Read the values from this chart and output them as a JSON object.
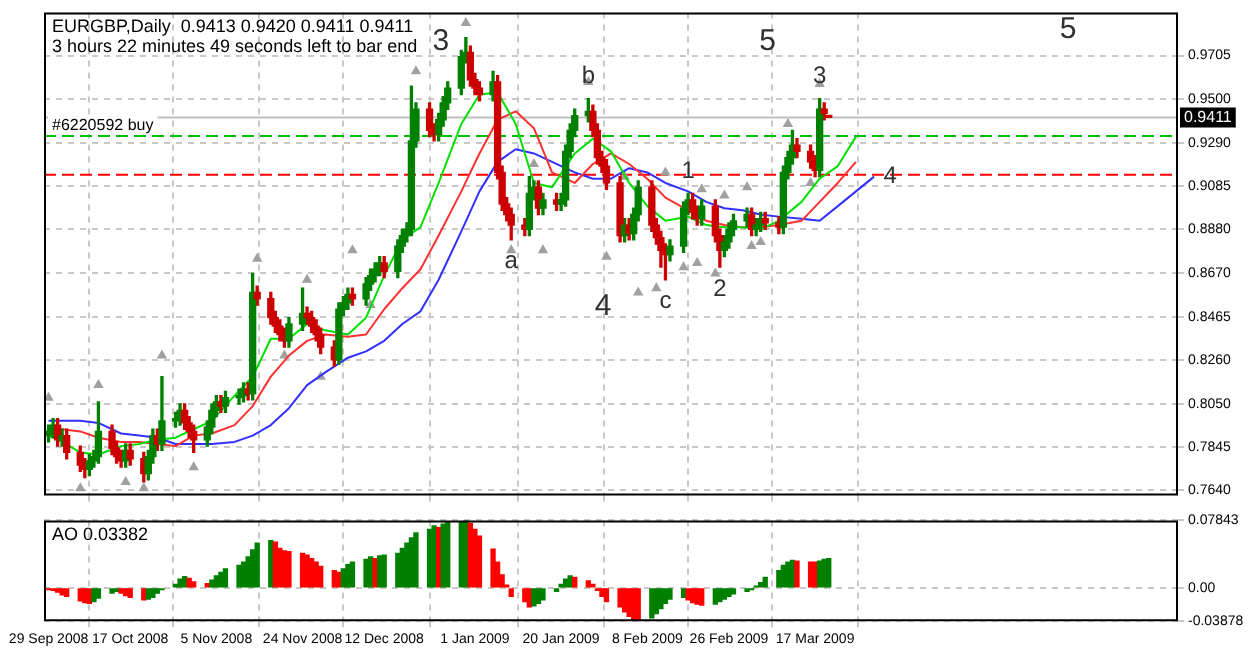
{
  "chart_data": [
    {
      "type": "candlestick",
      "title": "EURGBP,Daily  0.9413 0.9420 0.9411 0.9411",
      "subtitle": "3 hours 22 minutes 49 seconds left to bar end",
      "x": [
        "2008-09-29",
        "2008-09-30",
        "2008-10-01",
        "2008-10-02",
        "2008-10-03",
        "2008-10-06",
        "2008-10-07",
        "2008-10-08",
        "2008-10-09",
        "2008-10-10",
        "2008-10-13",
        "2008-10-14",
        "2008-10-15",
        "2008-10-16",
        "2008-10-17",
        "2008-10-20",
        "2008-10-21",
        "2008-10-22",
        "2008-10-23",
        "2008-10-24",
        "2008-10-27",
        "2008-10-28",
        "2008-10-29",
        "2008-10-30",
        "2008-10-31",
        "2008-11-03",
        "2008-11-04",
        "2008-11-05",
        "2008-11-06",
        "2008-11-07",
        "2008-11-10",
        "2008-11-11",
        "2008-11-12",
        "2008-11-13",
        "2008-11-14",
        "2008-11-17",
        "2008-11-18",
        "2008-11-19",
        "2008-11-20",
        "2008-11-21",
        "2008-11-24",
        "2008-11-25",
        "2008-11-26",
        "2008-11-27",
        "2008-11-28",
        "2008-12-01",
        "2008-12-02",
        "2008-12-03",
        "2008-12-04",
        "2008-12-05",
        "2008-12-08",
        "2008-12-09",
        "2008-12-10",
        "2008-12-11",
        "2008-12-12",
        "2008-12-15",
        "2008-12-16",
        "2008-12-17",
        "2008-12-18",
        "2008-12-19",
        "2008-12-22",
        "2008-12-23",
        "2008-12-24",
        "2008-12-25",
        "2008-12-26",
        "2008-12-29",
        "2008-12-30",
        "2008-12-31",
        "2009-01-01",
        "2009-01-02",
        "2009-01-05",
        "2009-01-06",
        "2009-01-07",
        "2009-01-08",
        "2009-01-09",
        "2009-01-12",
        "2009-01-13",
        "2009-01-14",
        "2009-01-15",
        "2009-01-16",
        "2009-01-19",
        "2009-01-20",
        "2009-01-21",
        "2009-01-22",
        "2009-01-23",
        "2009-01-26",
        "2009-01-27",
        "2009-01-28",
        "2009-01-29",
        "2009-01-30",
        "2009-02-02",
        "2009-02-03",
        "2009-02-04",
        "2009-02-05",
        "2009-02-06",
        "2009-02-09",
        "2009-02-10",
        "2009-02-11",
        "2009-02-12",
        "2009-02-13",
        "2009-02-16",
        "2009-02-17",
        "2009-02-18",
        "2009-02-19",
        "2009-02-20",
        "2009-02-23",
        "2009-02-24",
        "2009-02-25",
        "2009-02-26",
        "2009-02-27",
        "2009-03-02",
        "2009-03-03",
        "2009-03-04",
        "2009-03-05",
        "2009-03-06",
        "2009-03-09",
        "2009-03-10",
        "2009-03-11",
        "2009-03-12",
        "2009-03-13",
        "2009-03-16",
        "2009-03-17",
        "2009-03-18",
        "2009-03-19",
        "2009-03-20"
      ],
      "ohlc": [
        [
          0.79,
          0.795,
          0.787,
          0.792
        ],
        [
          0.792,
          0.798,
          0.789,
          0.795
        ],
        [
          0.795,
          0.798,
          0.785,
          0.788
        ],
        [
          0.788,
          0.793,
          0.785,
          0.79
        ],
        [
          0.79,
          0.793,
          0.779,
          0.782
        ],
        [
          0.782,
          0.785,
          0.773,
          0.776
        ],
        [
          0.776,
          0.779,
          0.77,
          0.774
        ],
        [
          0.774,
          0.781,
          0.771,
          0.778
        ],
        [
          0.778,
          0.783,
          0.775,
          0.78
        ],
        [
          0.78,
          0.806,
          0.777,
          0.792
        ],
        [
          0.792,
          0.795,
          0.781,
          0.784
        ],
        [
          0.784,
          0.787,
          0.777,
          0.78
        ],
        [
          0.78,
          0.783,
          0.775,
          0.778
        ],
        [
          0.778,
          0.786,
          0.775,
          0.783
        ],
        [
          0.783,
          0.786,
          0.776,
          0.779
        ],
        [
          0.779,
          0.782,
          0.768,
          0.772
        ],
        [
          0.772,
          0.783,
          0.769,
          0.78
        ],
        [
          0.78,
          0.793,
          0.777,
          0.79
        ],
        [
          0.79,
          0.793,
          0.783,
          0.786
        ],
        [
          0.786,
          0.818,
          0.783,
          0.797
        ],
        [
          0.797,
          0.801,
          0.794,
          0.798
        ],
        [
          0.798,
          0.805,
          0.795,
          0.802
        ],
        [
          0.802,
          0.805,
          0.793,
          0.796
        ],
        [
          0.796,
          0.799,
          0.789,
          0.792
        ],
        [
          0.792,
          0.795,
          0.782,
          0.788
        ],
        [
          0.788,
          0.797,
          0.785,
          0.794
        ],
        [
          0.794,
          0.805,
          0.791,
          0.802
        ],
        [
          0.802,
          0.809,
          0.799,
          0.806
        ],
        [
          0.806,
          0.809,
          0.801,
          0.804
        ],
        [
          0.804,
          0.811,
          0.801,
          0.808
        ],
        [
          0.808,
          0.812,
          0.805,
          0.809
        ],
        [
          0.809,
          0.815,
          0.806,
          0.812
        ],
        [
          0.812,
          0.815,
          0.807,
          0.81
        ],
        [
          0.81,
          0.867,
          0.807,
          0.858
        ],
        [
          0.858,
          0.861,
          0.852,
          0.855
        ],
        [
          0.855,
          0.858,
          0.843,
          0.846
        ],
        [
          0.846,
          0.849,
          0.839,
          0.842
        ],
        [
          0.842,
          0.845,
          0.835,
          0.838
        ],
        [
          0.838,
          0.841,
          0.832,
          0.835
        ],
        [
          0.835,
          0.846,
          0.832,
          0.843
        ],
        [
          0.843,
          0.86,
          0.84,
          0.848
        ],
        [
          0.848,
          0.851,
          0.843,
          0.846
        ],
        [
          0.846,
          0.849,
          0.839,
          0.842
        ],
        [
          0.842,
          0.845,
          0.835,
          0.838
        ],
        [
          0.838,
          0.841,
          0.829,
          0.832
        ],
        [
          0.832,
          0.835,
          0.823,
          0.826
        ],
        [
          0.826,
          0.853,
          0.824,
          0.85
        ],
        [
          0.85,
          0.856,
          0.847,
          0.853
        ],
        [
          0.853,
          0.86,
          0.85,
          0.857
        ],
        [
          0.857,
          0.86,
          0.852,
          0.855
        ],
        [
          0.855,
          0.865,
          0.852,
          0.862
        ],
        [
          0.862,
          0.869,
          0.859,
          0.866
        ],
        [
          0.866,
          0.872,
          0.863,
          0.869
        ],
        [
          0.869,
          0.875,
          0.866,
          0.872
        ],
        [
          0.872,
          0.875,
          0.865,
          0.868
        ],
        [
          0.868,
          0.883,
          0.865,
          0.88
        ],
        [
          0.88,
          0.888,
          0.877,
          0.885
        ],
        [
          0.885,
          0.891,
          0.882,
          0.888
        ],
        [
          0.888,
          0.956,
          0.885,
          0.93
        ],
        [
          0.93,
          0.948,
          0.927,
          0.945
        ],
        [
          0.945,
          0.948,
          0.932,
          0.935
        ],
        [
          0.935,
          0.938,
          0.93,
          0.933
        ],
        [
          0.933,
          0.943,
          0.93,
          0.94
        ],
        [
          0.94,
          0.951,
          0.937,
          0.948
        ],
        [
          0.948,
          0.958,
          0.945,
          0.955
        ],
        [
          0.955,
          0.973,
          0.952,
          0.97
        ],
        [
          0.97,
          0.979,
          0.967,
          0.972
        ],
        [
          0.972,
          0.975,
          0.956,
          0.959
        ],
        [
          0.959,
          0.962,
          0.952,
          0.955
        ],
        [
          0.955,
          0.958,
          0.949,
          0.952
        ],
        [
          0.952,
          0.963,
          0.949,
          0.958
        ],
        [
          0.958,
          0.961,
          0.912,
          0.915
        ],
        [
          0.915,
          0.918,
          0.897,
          0.9
        ],
        [
          0.9,
          0.903,
          0.892,
          0.895
        ],
        [
          0.895,
          0.898,
          0.883,
          0.89
        ],
        [
          0.89,
          0.893,
          0.885,
          0.888
        ],
        [
          0.888,
          0.913,
          0.885,
          0.905
        ],
        [
          0.905,
          0.911,
          0.902,
          0.908
        ],
        [
          0.908,
          0.911,
          0.895,
          0.898
        ],
        [
          0.898,
          0.905,
          0.895,
          0.902
        ],
        [
          0.902,
          0.905,
          0.897,
          0.9
        ],
        [
          0.9,
          0.905,
          0.897,
          0.902
        ],
        [
          0.902,
          0.928,
          0.899,
          0.925
        ],
        [
          0.925,
          0.938,
          0.922,
          0.935
        ],
        [
          0.935,
          0.945,
          0.932,
          0.942
        ],
        [
          0.942,
          0.95,
          0.939,
          0.944
        ],
        [
          0.944,
          0.947,
          0.932,
          0.935
        ],
        [
          0.935,
          0.938,
          0.919,
          0.922
        ],
        [
          0.922,
          0.925,
          0.915,
          0.918
        ],
        [
          0.918,
          0.921,
          0.907,
          0.91
        ],
        [
          0.91,
          0.913,
          0.882,
          0.885
        ],
        [
          0.885,
          0.893,
          0.882,
          0.89
        ],
        [
          0.89,
          0.893,
          0.883,
          0.886
        ],
        [
          0.886,
          0.898,
          0.883,
          0.895
        ],
        [
          0.895,
          0.911,
          0.892,
          0.908
        ],
        [
          0.908,
          0.911,
          0.887,
          0.89
        ],
        [
          0.89,
          0.893,
          0.881,
          0.884
        ],
        [
          0.884,
          0.887,
          0.87,
          0.878
        ],
        [
          0.878,
          0.881,
          0.864,
          0.876
        ],
        [
          0.876,
          0.883,
          0.873,
          0.88
        ],
        [
          0.88,
          0.901,
          0.877,
          0.898
        ],
        [
          0.898,
          0.905,
          0.895,
          0.902
        ],
        [
          0.902,
          0.905,
          0.893,
          0.896
        ],
        [
          0.896,
          0.899,
          0.89,
          0.893
        ],
        [
          0.893,
          0.902,
          0.89,
          0.899
        ],
        [
          0.899,
          0.902,
          0.882,
          0.885
        ],
        [
          0.885,
          0.888,
          0.87,
          0.878
        ],
        [
          0.878,
          0.885,
          0.875,
          0.882
        ],
        [
          0.882,
          0.891,
          0.879,
          0.888
        ],
        [
          0.888,
          0.895,
          0.885,
          0.892
        ],
        [
          0.892,
          0.898,
          0.889,
          0.895
        ],
        [
          0.895,
          0.898,
          0.885,
          0.888
        ],
        [
          0.888,
          0.893,
          0.885,
          0.89
        ],
        [
          0.89,
          0.896,
          0.887,
          0.893
        ],
        [
          0.893,
          0.896,
          0.888,
          0.891
        ],
        [
          0.891,
          0.894,
          0.886,
          0.889
        ],
        [
          0.889,
          0.918,
          0.886,
          0.915
        ],
        [
          0.915,
          0.925,
          0.912,
          0.922
        ],
        [
          0.922,
          0.935,
          0.919,
          0.928
        ],
        [
          0.928,
          0.931,
          0.922,
          0.925
        ],
        [
          0.925,
          0.928,
          0.917,
          0.92
        ],
        [
          0.92,
          0.923,
          0.913,
          0.916
        ],
        [
          0.916,
          0.95,
          0.913,
          0.945
        ],
        [
          0.945,
          0.948,
          0.94,
          0.943
        ],
        [
          0.9413,
          0.942,
          0.9411,
          0.9411
        ]
      ],
      "colors": [
        "#008000",
        "#008000",
        "#cc0000",
        "#008000",
        "#cc0000",
        "#cc0000",
        "#cc0000",
        "#008000",
        "#008000",
        "#008000",
        "#cc0000",
        "#cc0000",
        "#cc0000",
        "#008000",
        "#cc0000",
        "#cc0000",
        "#008000",
        "#008000",
        "#cc0000",
        "#008000",
        "#008000",
        "#008000",
        "#cc0000",
        "#cc0000",
        "#cc0000",
        "#008000",
        "#008000",
        "#008000",
        "#cc0000",
        "#008000",
        "#008000",
        "#008000",
        "#cc0000",
        "#008000",
        "#cc0000",
        "#cc0000",
        "#cc0000",
        "#cc0000",
        "#cc0000",
        "#008000",
        "#008000",
        "#cc0000",
        "#cc0000",
        "#cc0000",
        "#cc0000",
        "#cc0000",
        "#008000",
        "#008000",
        "#008000",
        "#cc0000",
        "#008000",
        "#008000",
        "#008000",
        "#008000",
        "#cc0000",
        "#008000",
        "#008000",
        "#008000",
        "#008000",
        "#008000",
        "#cc0000",
        "#cc0000",
        "#008000",
        "#008000",
        "#008000",
        "#008000",
        "#008000",
        "#cc0000",
        "#cc0000",
        "#cc0000",
        "#008000",
        "#cc0000",
        "#cc0000",
        "#cc0000",
        "#cc0000",
        "#cc0000",
        "#008000",
        "#008000",
        "#cc0000",
        "#008000",
        "#cc0000",
        "#008000",
        "#008000",
        "#008000",
        "#008000",
        "#008000",
        "#cc0000",
        "#cc0000",
        "#cc0000",
        "#cc0000",
        "#cc0000",
        "#008000",
        "#cc0000",
        "#008000",
        "#008000",
        "#cc0000",
        "#cc0000",
        "#cc0000",
        "#cc0000",
        "#008000",
        "#008000",
        "#008000",
        "#cc0000",
        "#cc0000",
        "#008000",
        "#cc0000",
        "#cc0000",
        "#008000",
        "#008000",
        "#008000",
        "#008000",
        "#cc0000",
        "#008000",
        "#008000",
        "#cc0000",
        "#cc0000",
        "#008000",
        "#008000",
        "#008000",
        "#cc0000",
        "#cc0000",
        "#cc0000",
        "#008000",
        "#cc0000",
        "#cc0000"
      ],
      "series": [
        {
          "type": "line",
          "color": "#00e000",
          "x": [
            "2008-09-29",
            "2008-10-02",
            "2008-10-06",
            "2008-10-10",
            "2008-10-15",
            "2008-10-19",
            "2008-10-23",
            "2008-10-27",
            "2008-10-31",
            "2008-11-04",
            "2008-11-09",
            "2008-11-13",
            "2008-11-17",
            "2008-11-21",
            "2008-11-25",
            "2008-11-29",
            "2008-12-04",
            "2008-12-08",
            "2008-12-12",
            "2008-12-16",
            "2008-12-20",
            "2008-12-24",
            "2008-12-29",
            "2009-01-02",
            "2009-01-06",
            "2009-01-10",
            "2009-01-14",
            "2009-01-18",
            "2009-01-23",
            "2009-01-27",
            "2009-01-31",
            "2009-02-04",
            "2009-02-08",
            "2009-02-12",
            "2009-02-17",
            "2009-02-21",
            "2009-02-25",
            "2009-03-01",
            "2009-03-05",
            "2009-03-09",
            "2009-03-14",
            "2009-03-18",
            "2009-03-22",
            "2009-03-26"
          ],
          "values": [
            0.79,
            0.787,
            0.782,
            0.781,
            0.785,
            0.786,
            0.788,
            0.789,
            0.793,
            0.797,
            0.809,
            0.818,
            0.836,
            0.836,
            0.843,
            0.84,
            0.838,
            0.846,
            0.866,
            0.883,
            0.889,
            0.91,
            0.938,
            0.952,
            0.953,
            0.938,
            0.91,
            0.908,
            0.924,
            0.931,
            0.925,
            0.91,
            0.899,
            0.892,
            0.894,
            0.89,
            0.889,
            0.889,
            0.888,
            0.892,
            0.901,
            0.912,
            0.918,
            0.932
          ]
        },
        {
          "type": "line",
          "color": "#ff3030",
          "x": [
            "2008-09-29",
            "2008-10-02",
            "2008-10-06",
            "2008-10-10",
            "2008-10-15",
            "2008-10-19",
            "2008-10-23",
            "2008-10-27",
            "2008-10-31",
            "2008-11-04",
            "2008-11-09",
            "2008-11-13",
            "2008-11-17",
            "2008-11-21",
            "2008-11-25",
            "2008-11-29",
            "2008-12-04",
            "2008-12-08",
            "2008-12-12",
            "2008-12-16",
            "2008-12-20",
            "2008-12-24",
            "2008-12-29",
            "2009-01-02",
            "2009-01-06",
            "2009-01-10",
            "2009-01-14",
            "2009-01-18",
            "2009-01-23",
            "2009-01-27",
            "2009-01-31",
            "2009-02-04",
            "2009-02-08",
            "2009-02-12",
            "2009-02-17",
            "2009-02-21",
            "2009-02-25",
            "2009-03-01",
            "2009-03-05",
            "2009-03-09",
            "2009-03-14",
            "2009-03-18",
            "2009-03-22",
            "2009-03-26"
          ],
          "values": [
            0.793,
            0.793,
            0.792,
            0.789,
            0.787,
            0.787,
            0.786,
            0.785,
            0.79,
            0.791,
            0.795,
            0.804,
            0.818,
            0.828,
            0.835,
            0.838,
            0.837,
            0.838,
            0.85,
            0.86,
            0.869,
            0.885,
            0.906,
            0.924,
            0.94,
            0.944,
            0.936,
            0.915,
            0.91,
            0.919,
            0.924,
            0.919,
            0.912,
            0.903,
            0.897,
            0.892,
            0.89,
            0.889,
            0.889,
            0.89,
            0.892,
            0.901,
            0.91,
            0.92
          ]
        },
        {
          "type": "line",
          "color": "#3030ff",
          "x": [
            "2008-09-29",
            "2008-10-02",
            "2008-10-06",
            "2008-10-10",
            "2008-10-15",
            "2008-10-19",
            "2008-10-23",
            "2008-10-27",
            "2008-10-31",
            "2008-11-04",
            "2008-11-09",
            "2008-11-13",
            "2008-11-17",
            "2008-11-21",
            "2008-11-25",
            "2008-11-29",
            "2008-12-04",
            "2008-12-08",
            "2008-12-12",
            "2008-12-16",
            "2008-12-20",
            "2008-12-24",
            "2008-12-29",
            "2009-01-02",
            "2009-01-06",
            "2009-01-10",
            "2009-01-14",
            "2009-01-18",
            "2009-01-23",
            "2009-01-27",
            "2009-01-31",
            "2009-02-04",
            "2009-02-08",
            "2009-02-12",
            "2009-02-17",
            "2009-02-21",
            "2009-02-25",
            "2009-03-01",
            "2009-03-05",
            "2009-03-09",
            "2009-03-14",
            "2009-03-18",
            "2009-03-22",
            "2009-03-26",
            "2009-03-30"
          ],
          "values": [
            0.797,
            0.797,
            0.797,
            0.796,
            0.791,
            0.79,
            0.789,
            0.786,
            0.786,
            0.786,
            0.787,
            0.79,
            0.795,
            0.803,
            0.814,
            0.82,
            0.827,
            0.83,
            0.835,
            0.843,
            0.849,
            0.864,
            0.887,
            0.906,
            0.92,
            0.926,
            0.924,
            0.92,
            0.915,
            0.912,
            0.912,
            0.917,
            0.915,
            0.91,
            0.906,
            0.901,
            0.898,
            0.897,
            0.895,
            0.894,
            0.893,
            0.892,
            0.899,
            0.906,
            0.913
          ]
        },
        {
          "type": "scatter",
          "color": "#a0a0a0",
          "marker": "triangle",
          "x": [
            "2008-09-29",
            "2008-10-10",
            "2008-10-24",
            "2008-11-14",
            "2008-11-25",
            "2008-12-05",
            "2008-12-19",
            "2008-12-30",
            "2009-01-14",
            "2009-01-26",
            "2009-02-03",
            "2009-02-12",
            "2009-02-20",
            "2009-02-25",
            "2009-03-02",
            "2009-03-11",
            "2009-03-18"
          ],
          "values": [
            0.808,
            0.814,
            0.828,
            0.874,
            0.864,
            0.878,
            0.963,
            0.986,
            0.919,
            0.958,
            0.913,
            0.915,
            0.907,
            0.904,
            0.908,
            0.938,
            0.957
          ]
        },
        {
          "type": "scatter",
          "color": "#a0a0a0",
          "marker": "triangle",
          "x": [
            "2008-10-06",
            "2008-10-16",
            "2008-10-20",
            "2008-10-31",
            "2008-11-20",
            "2008-11-28",
            "2008-12-09",
            "2009-01-09",
            "2009-01-16",
            "2009-01-30",
            "2009-02-06",
            "2009-02-10",
            "2009-02-16",
            "2009-02-19",
            "2009-02-23",
            "2009-03-03",
            "2009-03-05",
            "2009-03-16"
          ],
          "values": [
            0.765,
            0.768,
            0.765,
            0.775,
            0.828,
            0.818,
            0.852,
            0.878,
            0.878,
            0.875,
            0.858,
            0.86,
            0.87,
            0.872,
            0.867,
            0.88,
            0.882,
            0.91
          ]
        }
      ],
      "ref_lines": [
        {
          "axis": "y",
          "value": 0.9323,
          "label": "#6220592 buy",
          "color": "#00c000",
          "line_style": "dashed"
        },
        {
          "axis": "y",
          "value": 0.9139,
          "color": "#ff0000",
          "line_style": "dashed"
        },
        {
          "axis": "y",
          "value": 0.9411,
          "color": "#c0c0c0",
          "line_style": "solid"
        }
      ],
      "annotations": [
        "3",
        "5",
        "5",
        "4",
        {
          "text": "a",
          "x": "2009-01-09",
          "y": 0.883
        },
        {
          "text": "b",
          "x": "2009-01-26",
          "y": 0.95
        },
        {
          "text": "c",
          "x": "2009-02-12",
          "y": 0.864
        },
        {
          "text": "1",
          "x": "2009-02-17",
          "y": 0.905
        },
        {
          "text": "2",
          "x": "2009-02-24",
          "y": 0.87
        },
        {
          "text": "3",
          "x": "2009-03-18",
          "y": 0.95
        },
        {
          "text": "4",
          "x": "2009-03-30",
          "y": 0.913
        },
        {
          "text": "0.9411",
          "y": 0.9411
        }
      ],
      "xlim": [
        "2008-09-28",
        "2009-06-05"
      ],
      "xticks": [
        {
          "value": "2008-09-29",
          "label": null
        },
        {
          "value": "2008-10-17",
          "label": null
        },
        {
          "value": "2008-11-05",
          "label": null
        },
        {
          "value": "2008-11-24",
          "label": null
        },
        {
          "value": "2008-12-12",
          "label": null
        },
        {
          "value": "2009-01-01",
          "label": null
        },
        {
          "value": "2009-01-20",
          "label": null
        },
        {
          "value": "2009-02-08",
          "label": null
        },
        {
          "value": "2009-02-26",
          "label": null
        },
        {
          "value": "2009-03-17",
          "label": null
        }
      ],
      "ylim": [
        0.7615,
        0.991
      ],
      "yticks": [
        0.9705,
        {
          "value": 0.95,
          "label": "0.9500"
        },
        {
          "value": 0.929,
          "label": "0.9290"
        },
        0.9085,
        {
          "value": 0.888,
          "label": "0.8880"
        },
        {
          "value": 0.867,
          "label": "0.8670"
        },
        0.8465,
        {
          "value": 0.826,
          "label": "0.8260"
        },
        {
          "value": 0.805,
          "label": "0.8050"
        },
        0.7845,
        {
          "value": 0.764,
          "label": "0.7640"
        }
      ],
      "grid": true,
      "tick_labels": "y"
    },
    {
      "type": "bar",
      "title": "AO 0.03382",
      "x": [
        "2008-09-29",
        "2008-09-30",
        "2008-10-01",
        "2008-10-02",
        "2008-10-03",
        "2008-10-06",
        "2008-10-07",
        "2008-10-08",
        "2008-10-09",
        "2008-10-10",
        "2008-10-13",
        "2008-10-14",
        "2008-10-15",
        "2008-10-16",
        "2008-10-17",
        "2008-10-20",
        "2008-10-21",
        "2008-10-22",
        "2008-10-23",
        "2008-10-24",
        "2008-10-27",
        "2008-10-28",
        "2008-10-29",
        "2008-10-30",
        "2008-10-31",
        "2008-11-03",
        "2008-11-04",
        "2008-11-05",
        "2008-11-06",
        "2008-11-07",
        "2008-11-10",
        "2008-11-11",
        "2008-11-12",
        "2008-11-13",
        "2008-11-14",
        "2008-11-17",
        "2008-11-18",
        "2008-11-19",
        "2008-11-20",
        "2008-11-21",
        "2008-11-24",
        "2008-11-25",
        "2008-11-26",
        "2008-11-27",
        "2008-11-28",
        "2008-12-01",
        "2008-12-02",
        "2008-12-03",
        "2008-12-04",
        "2008-12-05",
        "2008-12-08",
        "2008-12-09",
        "2008-12-10",
        "2008-12-11",
        "2008-12-12",
        "2008-12-15",
        "2008-12-16",
        "2008-12-17",
        "2008-12-18",
        "2008-12-19",
        "2008-12-22",
        "2008-12-23",
        "2008-12-24",
        "2008-12-25",
        "2008-12-26",
        "2008-12-29",
        "2008-12-30",
        "2008-12-31",
        "2009-01-01",
        "2009-01-02",
        "2009-01-05",
        "2009-01-06",
        "2009-01-07",
        "2009-01-08",
        "2009-01-09",
        "2009-01-12",
        "2009-01-13",
        "2009-01-14",
        "2009-01-15",
        "2009-01-16",
        "2009-01-19",
        "2009-01-20",
        "2009-01-21",
        "2009-01-22",
        "2009-01-23",
        "2009-01-26",
        "2009-01-27",
        "2009-01-28",
        "2009-01-29",
        "2009-01-30",
        "2009-02-02",
        "2009-02-03",
        "2009-02-04",
        "2009-02-05",
        "2009-02-06",
        "2009-02-09",
        "2009-02-10",
        "2009-02-11",
        "2009-02-12",
        "2009-02-13",
        "2009-02-16",
        "2009-02-17",
        "2009-02-18",
        "2009-02-19",
        "2009-02-20",
        "2009-02-23",
        "2009-02-24",
        "2009-02-25",
        "2009-02-26",
        "2009-02-27",
        "2009-03-02",
        "2009-03-03",
        "2009-03-04",
        "2009-03-05",
        "2009-03-06",
        "2009-03-09",
        "2009-03-10",
        "2009-03-11",
        "2009-03-12",
        "2009-03-13",
        "2009-03-16",
        "2009-03-17",
        "2009-03-18",
        "2009-03-19",
        "2009-03-20"
      ],
      "values": [
        -0.002,
        -0.003,
        -0.005,
        -0.008,
        -0.01,
        -0.015,
        -0.017,
        -0.018,
        -0.016,
        -0.012,
        -0.006,
        -0.004,
        -0.006,
        -0.009,
        -0.011,
        -0.014,
        -0.013,
        -0.011,
        -0.006,
        -0.002,
        0.004,
        0.01,
        0.013,
        0.011,
        0.007,
        0.005,
        0.009,
        0.014,
        0.018,
        0.022,
        0.026,
        0.03,
        0.036,
        0.044,
        0.052,
        0.055,
        0.053,
        0.046,
        0.043,
        0.042,
        0.04,
        0.038,
        0.034,
        0.03,
        0.025,
        0.02,
        0.018,
        0.022,
        0.027,
        0.03,
        0.033,
        0.036,
        0.034,
        0.037,
        0.038,
        0.04,
        0.046,
        0.052,
        0.058,
        0.064,
        0.068,
        0.072,
        0.07,
        0.074,
        0.076,
        0.077,
        0.078,
        0.075,
        0.068,
        0.06,
        0.045,
        0.03,
        0.015,
        0.003,
        -0.01,
        -0.016,
        -0.022,
        -0.021,
        -0.018,
        -0.014,
        -0.004,
        0.004,
        0.01,
        0.014,
        0.012,
        0.008,
        0.004,
        -0.003,
        -0.01,
        -0.016,
        -0.022,
        -0.028,
        -0.033,
        -0.037,
        -0.038,
        -0.035,
        -0.03,
        -0.024,
        -0.018,
        -0.013,
        -0.011,
        -0.014,
        -0.017,
        -0.019,
        -0.02,
        -0.019,
        -0.016,
        -0.013,
        -0.01,
        -0.007,
        -0.004,
        -0.002,
        0.002,
        0.006,
        0.012,
        0.02,
        0.026,
        0.03,
        0.032,
        0.031,
        0.03,
        0.03,
        0.031,
        0.033,
        0.034
      ],
      "colors": [
        "#ff0000",
        "#ff0000",
        "#ff0000",
        "#ff0000",
        "#ff0000",
        "#ff0000",
        "#ff0000",
        "#ff0000",
        "#008000",
        "#008000",
        "#008000",
        "#008000",
        "#ff0000",
        "#ff0000",
        "#ff0000",
        "#ff0000",
        "#008000",
        "#008000",
        "#008000",
        "#008000",
        "#008000",
        "#008000",
        "#008000",
        "#ff0000",
        "#ff0000",
        "#ff0000",
        "#008000",
        "#008000",
        "#008000",
        "#008000",
        "#008000",
        "#008000",
        "#008000",
        "#008000",
        "#008000",
        "#008000",
        "#ff0000",
        "#ff0000",
        "#ff0000",
        "#ff0000",
        "#ff0000",
        "#ff0000",
        "#ff0000",
        "#ff0000",
        "#ff0000",
        "#ff0000",
        "#ff0000",
        "#008000",
        "#008000",
        "#008000",
        "#008000",
        "#008000",
        "#ff0000",
        "#008000",
        "#008000",
        "#008000",
        "#008000",
        "#008000",
        "#008000",
        "#008000",
        "#008000",
        "#008000",
        "#ff0000",
        "#008000",
        "#008000",
        "#008000",
        "#008000",
        "#ff0000",
        "#ff0000",
        "#ff0000",
        "#ff0000",
        "#ff0000",
        "#ff0000",
        "#ff0000",
        "#ff0000",
        "#ff0000",
        "#ff0000",
        "#008000",
        "#008000",
        "#008000",
        "#008000",
        "#008000",
        "#008000",
        "#008000",
        "#ff0000",
        "#ff0000",
        "#ff0000",
        "#ff0000",
        "#ff0000",
        "#ff0000",
        "#ff0000",
        "#ff0000",
        "#ff0000",
        "#ff0000",
        "#ff0000",
        "#008000",
        "#008000",
        "#008000",
        "#008000",
        "#008000",
        "#008000",
        "#ff0000",
        "#ff0000",
        "#ff0000",
        "#ff0000",
        "#008000",
        "#008000",
        "#008000",
        "#008000",
        "#008000",
        "#008000",
        "#008000",
        "#008000",
        "#008000",
        "#008000",
        "#008000",
        "#008000",
        "#008000",
        "#008000",
        "#ff0000",
        "#ff0000",
        "#ff0000",
        "#008000",
        "#008000",
        "#008000"
      ],
      "xlim": [
        "2008-09-28",
        "2009-06-05"
      ],
      "xticks": [
        {
          "value": "2008-09-29",
          "label": "29 Sep 2008"
        },
        {
          "value": "2008-10-17",
          "label": "17 Oct 2008"
        },
        {
          "value": "2008-11-05",
          "label": "5 Nov 2008"
        },
        {
          "value": "2008-11-24",
          "label": "24 Nov 2008"
        },
        {
          "value": "2008-12-12",
          "label": "12 Dec 2008"
        },
        {
          "value": "2009-01-01",
          "label": "1 Jan 2009"
        },
        {
          "value": "2009-01-20",
          "label": "20 Jan 2009"
        },
        {
          "value": "2009-02-08",
          "label": "8 Feb 2009"
        },
        {
          "value": "2009-02-26",
          "label": "26 Feb 2009"
        },
        {
          "value": "2009-03-17",
          "label": "17 Mar 2009"
        }
      ],
      "ylim": [
        -0.03878,
        0.07843
      ],
      "yticks": [
        0.07843,
        {
          "value": 0,
          "label": "0.00"
        },
        -0.03878
      ],
      "grid": true
    }
  ]
}
